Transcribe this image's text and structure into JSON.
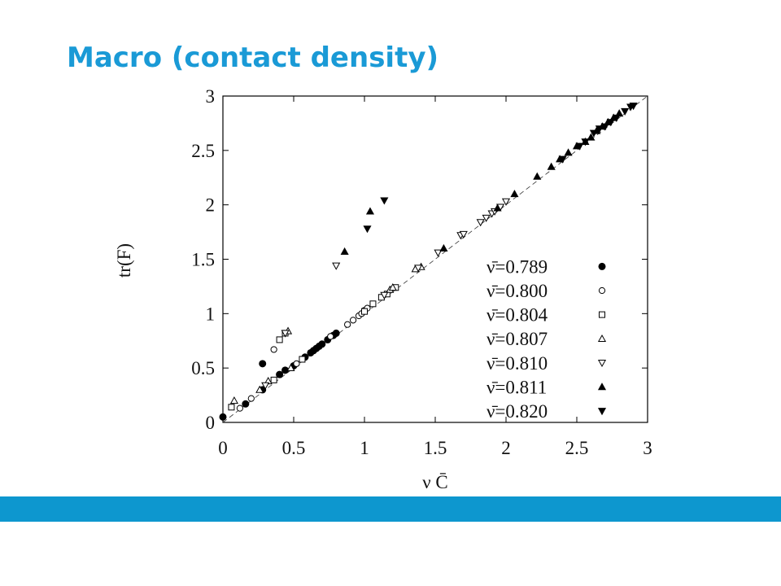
{
  "title": "Macro (contact density)",
  "chart_data": {
    "type": "scatter",
    "xlabel": "ν C̄",
    "ylabel": "tr(F)",
    "xlim": [
      0,
      3
    ],
    "ylim": [
      0,
      3
    ],
    "xticks": [
      0,
      0.5,
      1,
      1.5,
      2,
      2.5,
      3
    ],
    "yticks": [
      0,
      0.5,
      1,
      1.5,
      2,
      2.5,
      3
    ],
    "diagonal": true,
    "legend": "lower right",
    "series": [
      {
        "name": "ν̄=0.789",
        "color": "#000",
        "marker": "circle-filled",
        "x": [
          0.0,
          0.16,
          0.28,
          0.28,
          0.4,
          0.44,
          0.5,
          0.58,
          0.62,
          0.64,
          0.66,
          0.68,
          0.7,
          0.74,
          0.78,
          0.8
        ],
        "y": [
          0.05,
          0.17,
          0.3,
          0.54,
          0.44,
          0.48,
          0.52,
          0.6,
          0.64,
          0.66,
          0.68,
          0.7,
          0.72,
          0.76,
          0.8,
          0.82
        ]
      },
      {
        "name": "ν̄=0.800",
        "color": "#000",
        "marker": "circle-open",
        "x": [
          0.12,
          0.2,
          0.36,
          0.52,
          0.76,
          0.88,
          0.92,
          0.96,
          0.98,
          1.0,
          1.02
        ],
        "y": [
          0.13,
          0.22,
          0.67,
          0.54,
          0.79,
          0.9,
          0.94,
          0.98,
          1.0,
          1.03,
          1.05
        ]
      },
      {
        "name": "ν̄=0.804",
        "color": "#000",
        "marker": "square-open",
        "x": [
          0.06,
          0.36,
          0.4,
          0.44,
          0.56,
          1.0,
          1.06,
          1.12,
          1.16,
          1.22
        ],
        "y": [
          0.14,
          0.39,
          0.76,
          0.82,
          0.58,
          1.02,
          1.09,
          1.15,
          1.18,
          1.24
        ]
      },
      {
        "name": "ν̄=0.807",
        "color": "#000",
        "marker": "triangle-up-open",
        "x": [
          0.08,
          0.26,
          0.32,
          0.46,
          0.48,
          1.18,
          1.2,
          1.36,
          1.4
        ],
        "y": [
          0.2,
          0.3,
          0.38,
          0.84,
          0.5,
          1.22,
          1.24,
          1.41,
          1.43
        ]
      },
      {
        "name": "ν̄=0.810",
        "color": "#000",
        "marker": "triangle-down-open",
        "x": [
          0.3,
          0.44,
          0.8,
          1.14,
          1.38,
          1.52,
          1.68,
          1.7,
          1.82,
          1.86,
          1.9,
          1.92,
          1.96,
          2.0
        ],
        "y": [
          0.34,
          0.82,
          1.44,
          1.17,
          1.42,
          1.56,
          1.72,
          1.73,
          1.84,
          1.88,
          1.92,
          1.94,
          1.98,
          2.03
        ]
      },
      {
        "name": "ν̄=0.811",
        "color": "#000",
        "marker": "triangle-up-filled",
        "x": [
          0.86,
          1.04,
          1.56,
          1.94,
          2.06,
          2.22,
          2.32,
          2.38,
          2.44,
          2.5,
          2.56,
          2.6,
          2.64,
          2.68,
          2.72,
          2.76,
          2.8
        ],
        "y": [
          1.57,
          1.94,
          1.6,
          1.97,
          2.1,
          2.26,
          2.35,
          2.42,
          2.48,
          2.54,
          2.58,
          2.62,
          2.68,
          2.72,
          2.76,
          2.8,
          2.84
        ]
      },
      {
        "name": "ν̄=0.820",
        "color": "#000",
        "marker": "triangle-down-filled",
        "x": [
          1.02,
          1.14,
          2.4,
          2.52,
          2.56,
          2.62,
          2.66,
          2.7,
          2.74,
          2.78,
          2.84,
          2.88,
          2.9
        ],
        "y": [
          1.78,
          2.04,
          2.42,
          2.54,
          2.58,
          2.66,
          2.7,
          2.72,
          2.76,
          2.8,
          2.86,
          2.9,
          2.91
        ]
      }
    ]
  }
}
